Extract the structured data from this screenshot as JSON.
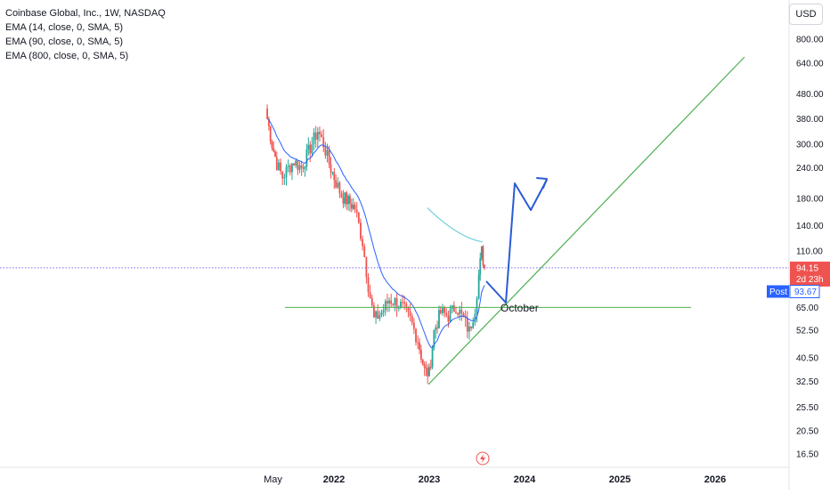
{
  "legend": {
    "title": "Coinbase Global, Inc., 1W, NASDAQ",
    "ema1": "EMA (14, close, 0, SMA, 5)",
    "ema2": "EMA (90, close, 0, SMA, 5)",
    "ema3": "EMA (800, close, 0, SMA, 5)"
  },
  "currency_label": "USD",
  "price_label": {
    "value": "94.15",
    "countdown": "2d 23h"
  },
  "post_label": {
    "tag": "Post",
    "value": "93.67"
  },
  "annotation": {
    "text": "October"
  },
  "colors": {
    "up": "#26a69a",
    "down": "#ef5350",
    "ema": "#2962ff",
    "ema_fast": "#5ec8d8",
    "trend": "#4caf50",
    "drawing": "#2a5bd7",
    "price_line": "#7b6ef6",
    "post": "#2962ff"
  },
  "chart_data": {
    "type": "candlestick",
    "y_scale": "log",
    "y_ticks": [
      "800.00",
      "640.00",
      "480.00",
      "380.00",
      "300.00",
      "240.00",
      "180.00",
      "140.00",
      "110.00",
      "65.00",
      "52.50",
      "40.50",
      "32.50",
      "25.50",
      "20.50",
      "16.50"
    ],
    "x_ticks": [
      {
        "label": "May",
        "year": false
      },
      {
        "label": "2022",
        "year": true
      },
      {
        "label": "2023",
        "year": true
      },
      {
        "label": "2024",
        "year": true
      },
      {
        "label": "2025",
        "year": true
      },
      {
        "label": "2026",
        "year": true
      }
    ],
    "last_price": 94.15,
    "post_price": 93.67,
    "support_level": 65,
    "weekly_close_approx": [
      {
        "t": 2021.3,
        "c": 380
      },
      {
        "t": 2021.35,
        "c": 300
      },
      {
        "t": 2021.4,
        "c": 250
      },
      {
        "t": 2021.46,
        "c": 220
      },
      {
        "t": 2021.52,
        "c": 240
      },
      {
        "t": 2021.58,
        "c": 255
      },
      {
        "t": 2021.66,
        "c": 240
      },
      {
        "t": 2021.75,
        "c": 290
      },
      {
        "t": 2021.83,
        "c": 340
      },
      {
        "t": 2021.89,
        "c": 300
      },
      {
        "t": 2021.95,
        "c": 250
      },
      {
        "t": 2022.02,
        "c": 210
      },
      {
        "t": 2022.08,
        "c": 185
      },
      {
        "t": 2022.15,
        "c": 175
      },
      {
        "t": 2022.22,
        "c": 165
      },
      {
        "t": 2022.3,
        "c": 120
      },
      {
        "t": 2022.36,
        "c": 80
      },
      {
        "t": 2022.42,
        "c": 58
      },
      {
        "t": 2022.5,
        "c": 62
      },
      {
        "t": 2022.58,
        "c": 70
      },
      {
        "t": 2022.66,
        "c": 68
      },
      {
        "t": 2022.72,
        "c": 65
      },
      {
        "t": 2022.8,
        "c": 58
      },
      {
        "t": 2022.88,
        "c": 48
      },
      {
        "t": 2022.95,
        "c": 36
      },
      {
        "t": 2023.0,
        "c": 35
      },
      {
        "t": 2023.05,
        "c": 52
      },
      {
        "t": 2023.12,
        "c": 62
      },
      {
        "t": 2023.2,
        "c": 60
      },
      {
        "t": 2023.28,
        "c": 66
      },
      {
        "t": 2023.36,
        "c": 58
      },
      {
        "t": 2023.42,
        "c": 52
      },
      {
        "t": 2023.48,
        "c": 65
      },
      {
        "t": 2023.52,
        "c": 88
      },
      {
        "t": 2023.55,
        "c": 110
      },
      {
        "t": 2023.58,
        "c": 94.15
      }
    ]
  }
}
